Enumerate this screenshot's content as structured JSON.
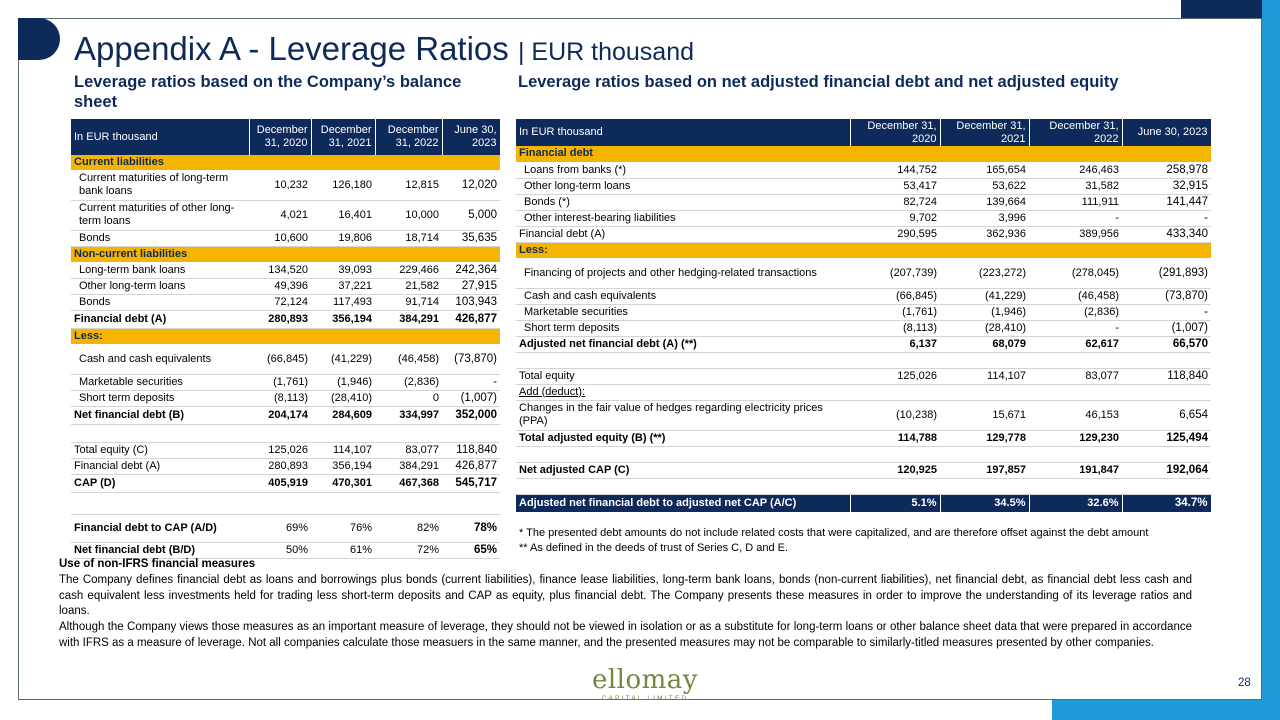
{
  "page": {
    "title": "Appendix A - Leverage Ratios",
    "title_suffix": "| EUR thousand",
    "page_number": "28"
  },
  "left": {
    "section_title": "Leverage ratios based on the Company’s balance sheet",
    "header": [
      "In EUR thousand",
      "December 31, 2020",
      "December 31, 2021",
      "December 31, 2022",
      "June 30, 2023"
    ],
    "rows": [
      {
        "type": "section",
        "label": "Current liabilities"
      },
      {
        "type": "row",
        "indent": true,
        "label": "Current maturities of long-term bank loans",
        "values": [
          "10,232",
          "126,180",
          "12,815",
          "12,020"
        ]
      },
      {
        "type": "row",
        "indent": true,
        "label": "Current maturities of other long-term loans",
        "values": [
          "4,021",
          "16,401",
          "10,000",
          "5,000"
        ]
      },
      {
        "type": "row",
        "indent": true,
        "label": "Bonds",
        "values": [
          "10,600",
          "19,806",
          "18,714",
          "35,635"
        ]
      },
      {
        "type": "section",
        "label": "Non-current liabilities"
      },
      {
        "type": "row",
        "indent": true,
        "label": "Long-term bank loans",
        "values": [
          "134,520",
          "39,093",
          "229,466",
          "242,364"
        ]
      },
      {
        "type": "row",
        "indent": true,
        "label": "Other long-term loans",
        "values": [
          "49,396",
          "37,221",
          "21,582",
          "27,915"
        ]
      },
      {
        "type": "row",
        "indent": true,
        "label": "Bonds",
        "values": [
          "72,124",
          "117,493",
          "91,714",
          "103,943"
        ]
      },
      {
        "type": "bold",
        "label": "Financial debt (A)",
        "values": [
          "280,893",
          "356,194",
          "384,291",
          "426,877"
        ]
      },
      {
        "type": "section",
        "label": "Less:"
      },
      {
        "type": "row",
        "indent": true,
        "label": "Cash and cash equivalents",
        "values": [
          "(66,845)",
          "(41,229)",
          "(46,458)",
          "(73,870)"
        ]
      },
      {
        "type": "row",
        "indent": true,
        "label": "Marketable securities",
        "values": [
          "(1,761)",
          "(1,946)",
          "(2,836)",
          "-"
        ]
      },
      {
        "type": "row",
        "indent": true,
        "label": "Short term deposits",
        "values": [
          "(8,113)",
          "(28,410)",
          "0",
          "(1,007)"
        ]
      },
      {
        "type": "bold",
        "label": "Net financial debt (B)",
        "values": [
          "204,174",
          "284,609",
          "334,997",
          "352,000"
        ]
      },
      {
        "type": "blank"
      },
      {
        "type": "row",
        "label": "Total equity (C)",
        "values": [
          "125,026",
          "114,107",
          "83,077",
          "118,840"
        ]
      },
      {
        "type": "row",
        "label": "Financial debt (A)",
        "values": [
          "280,893",
          "356,194",
          "384,291",
          "426,877"
        ]
      },
      {
        "type": "bold",
        "label": "CAP (D)",
        "values": [
          "405,919",
          "470,301",
          "467,368",
          "545,717"
        ]
      },
      {
        "type": "blank"
      },
      {
        "type": "ratio",
        "label": "Financial debt to CAP (A/D)",
        "values": [
          "69%",
          "76%",
          "82%",
          "78%"
        ]
      },
      {
        "type": "ratio",
        "label": "Net financial debt (B/D)",
        "values": [
          "50%",
          "61%",
          "72%",
          "65%"
        ]
      }
    ]
  },
  "right": {
    "section_title": "Leverage ratios based on net adjusted financial debt and net adjusted equity",
    "header": [
      "In EUR thousand",
      "December 31, 2020",
      "December 31, 2021",
      "December 31, 2022",
      "June 30, 2023"
    ],
    "rows": [
      {
        "type": "section",
        "label": "Financial debt"
      },
      {
        "type": "row",
        "indent": true,
        "label": "Loans from banks (*)",
        "values": [
          "144,752",
          "165,654",
          "246,463",
          "258,978"
        ]
      },
      {
        "type": "row",
        "indent": true,
        "label": "Other long-term loans",
        "values": [
          "53,417",
          "53,622",
          "31,582",
          "32,915"
        ]
      },
      {
        "type": "row",
        "indent": true,
        "label": "Bonds (*)",
        "values": [
          "82,724",
          "139,664",
          "111,911",
          "141,447"
        ]
      },
      {
        "type": "row",
        "indent": true,
        "label": "Other interest-bearing liabilities",
        "values": [
          "9,702",
          "3,996",
          "-",
          "-"
        ]
      },
      {
        "type": "row",
        "label": "Financial debt (A)",
        "values": [
          "290,595",
          "362,936",
          "389,956",
          "433,340"
        ]
      },
      {
        "type": "section",
        "label": "Less:"
      },
      {
        "type": "row",
        "indent": true,
        "label": "Financing of projects and other hedging-related transactions",
        "values": [
          "(207,739)",
          "(223,272)",
          "(278,045)",
          "(291,893)"
        ]
      },
      {
        "type": "row",
        "indent": true,
        "label": "Cash and cash equivalents",
        "values": [
          "(66,845)",
          "(41,229)",
          "(46,458)",
          "(73,870)"
        ]
      },
      {
        "type": "row",
        "indent": true,
        "label": "Marketable securities",
        "values": [
          "(1,761)",
          "(1,946)",
          "(2,836)",
          "-"
        ]
      },
      {
        "type": "row",
        "indent": true,
        "label": "Short term deposits",
        "values": [
          "(8,113)",
          "(28,410)",
          "-",
          "(1,007)"
        ]
      },
      {
        "type": "bold",
        "label": "Adjusted net financial debt (A) (**)",
        "values": [
          "6,137",
          "68,079",
          "62,617",
          "66,570"
        ]
      },
      {
        "type": "blank"
      },
      {
        "type": "row",
        "label": "Total equity",
        "values": [
          "125,026",
          "114,107",
          "83,077",
          "118,840"
        ]
      },
      {
        "type": "underline",
        "label": "Add (deduct):"
      },
      {
        "type": "row",
        "label": "Changes in the fair value of hedges regarding electricity prices (PPA)",
        "values": [
          "(10,238)",
          "15,671",
          "46,153",
          "6,654"
        ]
      },
      {
        "type": "bold",
        "label": "Total adjusted equity (B) (**)",
        "values": [
          "114,788",
          "129,778",
          "129,230",
          "125,494"
        ]
      },
      {
        "type": "blank"
      },
      {
        "type": "bold",
        "label": "Net adjusted CAP (C)",
        "values": [
          "120,925",
          "197,857",
          "191,847",
          "192,064"
        ]
      },
      {
        "type": "blank"
      },
      {
        "type": "foot",
        "label": "Adjusted net financial debt to adjusted net CAP (A/C)",
        "values": [
          "5.1%",
          "34.5%",
          "32.6%",
          "34.7%"
        ]
      }
    ],
    "notes": [
      "*   The presented debt amounts do not include related costs that were capitalized, and are therefore offset against the debt amount",
      "** As defined in the deeds of trust of Series C, D and E."
    ]
  },
  "disclosure": {
    "heading": "Use of non-IFRS financial measures",
    "p1": "The Company defines financial debt as loans and borrowings plus bonds (current liabilities), finance lease liabilities, long-term bank loans, bonds (non-current liabilities), net financial debt, as financial debt less cash and cash equivalent less investments held for trading less short-term deposits and CAP as equity, plus financial debt. The Company presents these measures in order to improve the understanding of its leverage ratios and loans.",
    "p2": "Although the Company views those measures as an important measure of leverage, they should not be viewed in isolation or as a substitute for long-term loans or other balance sheet data that were prepared in accordance with IFRS as a measure of leverage. Not all companies calculate those measuers in the same manner, and the presented measures may not be comparable to similarly-titled measures presented by other companies."
  },
  "logo": {
    "name": "ellomay",
    "tagline": "CAPITAL LIMITED"
  }
}
